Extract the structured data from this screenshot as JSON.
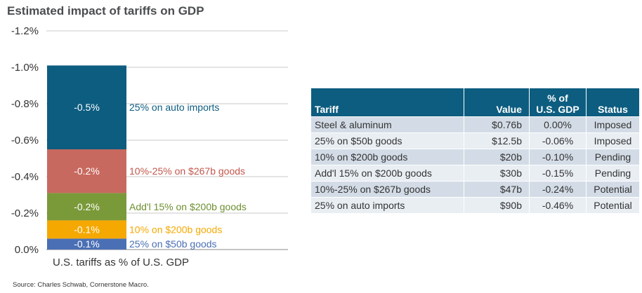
{
  "title": "Estimated impact of tariffs on GDP",
  "source": "Source:  Charles Schwab, Cornerstone Macro.",
  "chart_data": {
    "type": "bar",
    "stacked": true,
    "xlabel": "U.S. tariffs as % of U.S. GDP",
    "ylabel": "",
    "ylim": [
      0,
      -1.2
    ],
    "yticks": [
      -1.2,
      -1.0,
      -0.8,
      -0.6,
      -0.4,
      -0.2,
      0.0
    ],
    "ytick_labels": [
      "-1.2%",
      "-1.0%",
      "-0.8%",
      "-0.6%",
      "-0.4%",
      "-0.2%",
      "0.0%"
    ],
    "grid": true,
    "series": [
      {
        "name": "25% on $50b goods",
        "value": -0.06,
        "label": "-0.1%",
        "color": "#4a6fb5",
        "label_color": "#4a6fb5"
      },
      {
        "name": "10% on $200b goods",
        "value": -0.1,
        "label": "-0.1%",
        "color": "#f5a800",
        "label_color": "#f5a800"
      },
      {
        "name": "Add'l 15% on $200b goods",
        "value": -0.15,
        "label": "-0.2%",
        "color": "#7a9a3a",
        "label_color": "#6e8f30"
      },
      {
        "name": "10%-25% on $267b goods",
        "value": -0.24,
        "label": "-0.2%",
        "color": "#c8695f",
        "label_color": "#c0574c"
      },
      {
        "name": "25% on auto imports",
        "value": -0.46,
        "label": "-0.5%",
        "color": "#0d5d80",
        "label_color": "#0d5d80"
      }
    ]
  },
  "table": {
    "headers": [
      "Tariff",
      "Value",
      "% of\nU.S. GDP",
      "Status"
    ],
    "rows": [
      [
        "Steel  & aluminum",
        "$0.76b",
        "0.00%",
        "Imposed"
      ],
      [
        "25% on $50b goods",
        "$12.5b",
        "-0.06%",
        "Imposed"
      ],
      [
        "10% on $200b goods",
        "$20b",
        "-0.10%",
        "Pending"
      ],
      [
        "Add'l 15% on $200b goods",
        "$30b",
        "-0.15%",
        "Pending"
      ],
      [
        "10%-25% on $267b goods",
        "$47b",
        "-0.24%",
        "Potential"
      ],
      [
        "25% on auto imports",
        "$90b",
        "-0.46%",
        "Potential"
      ]
    ]
  }
}
